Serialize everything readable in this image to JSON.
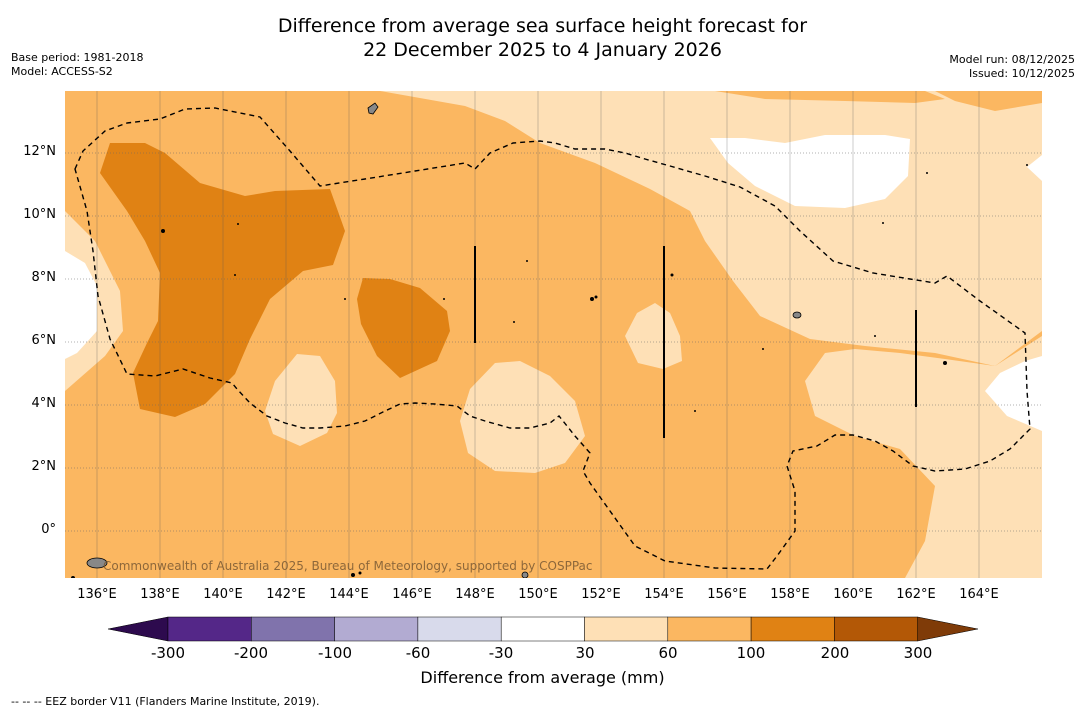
{
  "title_line1": "Difference from average sea surface height forecast for",
  "title_line2": "22 December 2025 to 4 January 2026",
  "meta_left": {
    "base_period": "Base period: 1981-2018",
    "model": "Model: ACCESS-S2"
  },
  "meta_right": {
    "model_run": "Model run: 08/12/2025",
    "issued": "Issued: 10/12/2025"
  },
  "y_axis_labels": [
    "12°N",
    "10°N",
    "8°N",
    "6°N",
    "4°N",
    "2°N",
    "0°"
  ],
  "x_axis_labels": [
    "136°E",
    "138°E",
    "140°E",
    "142°E",
    "144°E",
    "146°E",
    "148°E",
    "150°E",
    "152°E",
    "154°E",
    "156°E",
    "158°E",
    "160°E",
    "162°E",
    "164°E"
  ],
  "watermark": "Commonwealth of Australia 2025, Bureau of Meteorology, supported by COSPPac",
  "colorbar": {
    "labels": [
      "-300",
      "-200",
      "-100",
      "-60",
      "-30",
      "30",
      "60",
      "100",
      "200",
      "300"
    ],
    "colors": [
      "#2d0a4e",
      "#542788",
      "#8073ac",
      "#b2abd2",
      "#d8daeb",
      "#ffffff",
      "#fee0b6",
      "#fbb761",
      "#e08214",
      "#b35806",
      "#7f3b08"
    ],
    "title": "Difference from average (mm)"
  },
  "map_colors": {
    "light": "#fee0b6",
    "medium": "#fbb761",
    "dark": "#e08214",
    "white": "#ffffff"
  },
  "footnote": "--  --  -- EEZ border V11 (Flanders Marine Institute, 2019)."
}
